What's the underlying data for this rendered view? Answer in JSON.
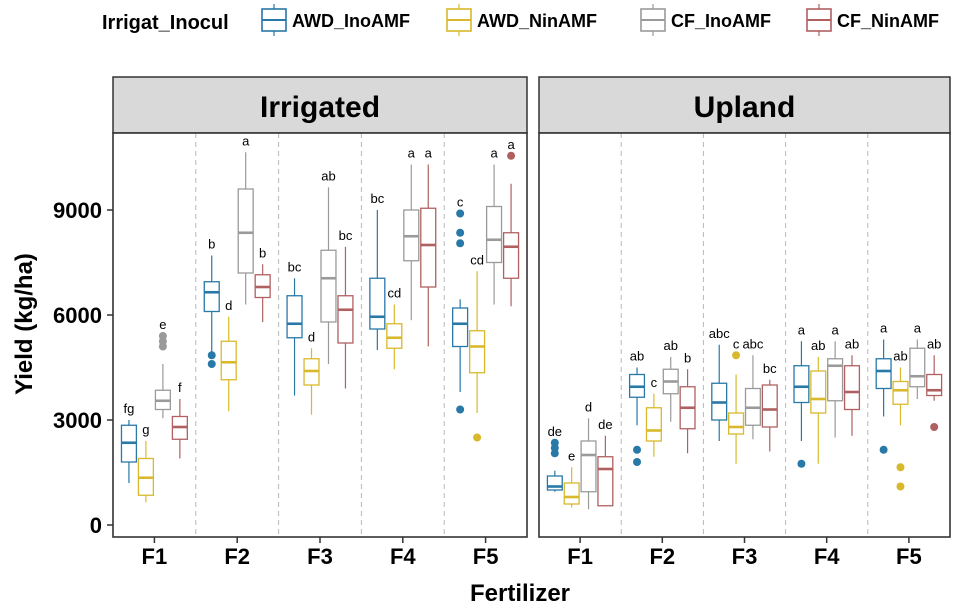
{
  "chart_data": {
    "type": "boxplot",
    "xlabel": "Fertilizer",
    "ylabel": "Yield (kg/ha)",
    "ylim": [
      0,
      11000
    ],
    "yticks": [
      0,
      3000,
      6000,
      9000
    ],
    "ytick_labels": [
      "0",
      "3000",
      "6000",
      "9000"
    ],
    "categories": [
      "F1",
      "F2",
      "F3",
      "F4",
      "F5"
    ],
    "legend": {
      "title": "Irrigat_Inocul",
      "position": "top",
      "entries": [
        {
          "name": "AWD_InoAMF",
          "color": "#2878a8"
        },
        {
          "name": "AWD_NinAMF",
          "color": "#d9b92b"
        },
        {
          "name": "CF_InoAMF",
          "color": "#9a9a9a"
        },
        {
          "name": "CF_NinAMF",
          "color": "#b06060"
        }
      ]
    },
    "panels": [
      {
        "name": "Irrigated",
        "groups": [
          {
            "category": "F1",
            "boxes": [
              {
                "series": "AWD_InoAMF",
                "min": 1200,
                "q1": 1800,
                "median": 2350,
                "q3": 2850,
                "max": 3000,
                "outliers": [],
                "letter": "fg"
              },
              {
                "series": "AWD_NinAMF",
                "min": 650,
                "q1": 850,
                "median": 1350,
                "q3": 1900,
                "max": 2400,
                "outliers": [],
                "letter": "g"
              },
              {
                "series": "CF_InoAMF",
                "min": 3050,
                "q1": 3300,
                "median": 3550,
                "q3": 3850,
                "max": 4600,
                "outliers": [
                  5100,
                  5250,
                  5400
                ],
                "letter": "e"
              },
              {
                "series": "CF_NinAMF",
                "min": 1900,
                "q1": 2450,
                "median": 2800,
                "q3": 3100,
                "max": 3600,
                "outliers": [],
                "letter": "f"
              }
            ]
          },
          {
            "category": "F2",
            "boxes": [
              {
                "series": "AWD_InoAMF",
                "min": 4950,
                "q1": 6100,
                "median": 6650,
                "q3": 6950,
                "max": 7700,
                "outliers": [
                  4600,
                  4850
                ],
                "letter": "b"
              },
              {
                "series": "AWD_NinAMF",
                "min": 3250,
                "q1": 4150,
                "median": 4650,
                "q3": 5250,
                "max": 5950,
                "outliers": [],
                "letter": "d"
              },
              {
                "series": "CF_InoAMF",
                "min": 6300,
                "q1": 7200,
                "median": 8350,
                "q3": 9600,
                "max": 10650,
                "outliers": [],
                "letter": "a"
              },
              {
                "series": "CF_NinAMF",
                "min": 5800,
                "q1": 6500,
                "median": 6800,
                "q3": 7150,
                "max": 7450,
                "outliers": [],
                "letter": "b"
              }
            ]
          },
          {
            "category": "F3",
            "boxes": [
              {
                "series": "AWD_InoAMF",
                "min": 3700,
                "q1": 5350,
                "median": 5750,
                "q3": 6550,
                "max": 7050,
                "outliers": [],
                "letter": "bc"
              },
              {
                "series": "AWD_NinAMF",
                "min": 3150,
                "q1": 4000,
                "median": 4400,
                "q3": 4750,
                "max": 5050,
                "outliers": [],
                "letter": "d"
              },
              {
                "series": "CF_InoAMF",
                "min": 4600,
                "q1": 5800,
                "median": 7050,
                "q3": 7850,
                "max": 9650,
                "outliers": [],
                "letter": "ab"
              },
              {
                "series": "CF_NinAMF",
                "min": 3900,
                "q1": 5200,
                "median": 6150,
                "q3": 6550,
                "max": 7950,
                "outliers": [],
                "letter": "bc"
              }
            ]
          },
          {
            "category": "F4",
            "boxes": [
              {
                "series": "AWD_InoAMF",
                "min": 5000,
                "q1": 5600,
                "median": 5950,
                "q3": 7050,
                "max": 9000,
                "outliers": [],
                "letter": "bc"
              },
              {
                "series": "AWD_NinAMF",
                "min": 4450,
                "q1": 5050,
                "median": 5350,
                "q3": 5750,
                "max": 6300,
                "outliers": [],
                "letter": "cd"
              },
              {
                "series": "CF_InoAMF",
                "min": 5850,
                "q1": 7550,
                "median": 8250,
                "q3": 9000,
                "max": 10300,
                "outliers": [],
                "letter": "a"
              },
              {
                "series": "CF_NinAMF",
                "min": 5100,
                "q1": 6800,
                "median": 8000,
                "q3": 9050,
                "max": 10300,
                "outliers": [],
                "letter": "a"
              }
            ]
          },
          {
            "category": "F5",
            "boxes": [
              {
                "series": "AWD_InoAMF",
                "min": 3800,
                "q1": 5100,
                "median": 5750,
                "q3": 6200,
                "max": 6450,
                "outliers": [
                  3300,
                  8050,
                  8350,
                  8900
                ],
                "letter": "c"
              },
              {
                "series": "AWD_NinAMF",
                "min": 3200,
                "q1": 4350,
                "median": 5100,
                "q3": 5550,
                "max": 7250,
                "outliers": [
                  2500
                ],
                "letter": "cd"
              },
              {
                "series": "CF_InoAMF",
                "min": 6300,
                "q1": 7500,
                "median": 8150,
                "q3": 9100,
                "max": 10300,
                "outliers": [],
                "letter": "a"
              },
              {
                "series": "CF_NinAMF",
                "min": 6250,
                "q1": 7050,
                "median": 7950,
                "q3": 8350,
                "max": 9750,
                "outliers": [
                  10550
                ],
                "letter": "a"
              }
            ]
          }
        ]
      },
      {
        "name": "Upland",
        "groups": [
          {
            "category": "F1",
            "boxes": [
              {
                "series": "AWD_InoAMF",
                "min": 950,
                "q1": 1000,
                "median": 1100,
                "q3": 1400,
                "max": 1550,
                "outliers": [
                  2050,
                  2200,
                  2350
                ],
                "letter": "de"
              },
              {
                "series": "AWD_NinAMF",
                "min": 500,
                "q1": 600,
                "median": 800,
                "q3": 1200,
                "max": 1650,
                "outliers": [],
                "letter": "e"
              },
              {
                "series": "CF_InoAMF",
                "min": 450,
                "q1": 950,
                "median": 2000,
                "q3": 2400,
                "max": 3050,
                "outliers": [],
                "letter": "d"
              },
              {
                "series": "CF_NinAMF",
                "min": 550,
                "q1": 550,
                "median": 1600,
                "q3": 1950,
                "max": 2550,
                "outliers": [],
                "letter": "de"
              }
            ]
          },
          {
            "category": "F2",
            "boxes": [
              {
                "series": "AWD_InoAMF",
                "min": 2850,
                "q1": 3650,
                "median": 3950,
                "q3": 4300,
                "max": 4500,
                "outliers": [
                  1800,
                  2150
                ],
                "letter": "ab"
              },
              {
                "series": "AWD_NinAMF",
                "min": 1950,
                "q1": 2400,
                "median": 2700,
                "q3": 3350,
                "max": 3750,
                "outliers": [],
                "letter": "c"
              },
              {
                "series": "CF_InoAMF",
                "min": 2950,
                "q1": 3750,
                "median": 4100,
                "q3": 4450,
                "max": 4800,
                "outliers": [],
                "letter": "ab"
              },
              {
                "series": "CF_NinAMF",
                "min": 2050,
                "q1": 2750,
                "median": 3350,
                "q3": 3950,
                "max": 4450,
                "outliers": [],
                "letter": "b"
              }
            ]
          },
          {
            "category": "F3",
            "boxes": [
              {
                "series": "AWD_InoAMF",
                "min": 2400,
                "q1": 3000,
                "median": 3500,
                "q3": 4050,
                "max": 5150,
                "outliers": [],
                "letter": "abc"
              },
              {
                "series": "AWD_NinAMF",
                "min": 1750,
                "q1": 2600,
                "median": 2800,
                "q3": 3200,
                "max": 4300,
                "outliers": [
                  4850
                ],
                "letter": "c"
              },
              {
                "series": "CF_InoAMF",
                "min": 2450,
                "q1": 2850,
                "median": 3350,
                "q3": 3900,
                "max": 4850,
                "outliers": [],
                "letter": "abc"
              },
              {
                "series": "CF_NinAMF",
                "min": 2100,
                "q1": 2800,
                "median": 3300,
                "q3": 4000,
                "max": 4150,
                "outliers": [],
                "letter": "bc"
              }
            ]
          },
          {
            "category": "F4",
            "boxes": [
              {
                "series": "AWD_InoAMF",
                "min": 2400,
                "q1": 3500,
                "median": 3950,
                "q3": 4550,
                "max": 5250,
                "outliers": [
                  1750
                ],
                "letter": "a"
              },
              {
                "series": "AWD_NinAMF",
                "min": 1750,
                "q1": 3200,
                "median": 3600,
                "q3": 4400,
                "max": 4800,
                "outliers": [],
                "letter": "ab"
              },
              {
                "series": "CF_InoAMF",
                "min": 2500,
                "q1": 3550,
                "median": 4550,
                "q3": 4750,
                "max": 5250,
                "outliers": [],
                "letter": "a"
              },
              {
                "series": "CF_NinAMF",
                "min": 2550,
                "q1": 3300,
                "median": 3800,
                "q3": 4550,
                "max": 4850,
                "outliers": [],
                "letter": "ab"
              }
            ]
          },
          {
            "category": "F5",
            "boxes": [
              {
                "series": "AWD_InoAMF",
                "min": 3100,
                "q1": 3900,
                "median": 4400,
                "q3": 4750,
                "max": 5300,
                "outliers": [
                  2150
                ],
                "letter": "a"
              },
              {
                "series": "AWD_NinAMF",
                "min": 2850,
                "q1": 3450,
                "median": 3850,
                "q3": 4100,
                "max": 4500,
                "outliers": [
                  1100,
                  1650
                ],
                "letter": "ab"
              },
              {
                "series": "CF_InoAMF",
                "min": 3600,
                "q1": 3950,
                "median": 4250,
                "q3": 5050,
                "max": 5300,
                "outliers": [],
                "letter": "a"
              },
              {
                "series": "CF_NinAMF",
                "min": 3550,
                "q1": 3700,
                "median": 3850,
                "q3": 4300,
                "max": 4850,
                "outliers": [
                  2800
                ],
                "letter": "ab"
              }
            ]
          }
        ]
      }
    ]
  }
}
